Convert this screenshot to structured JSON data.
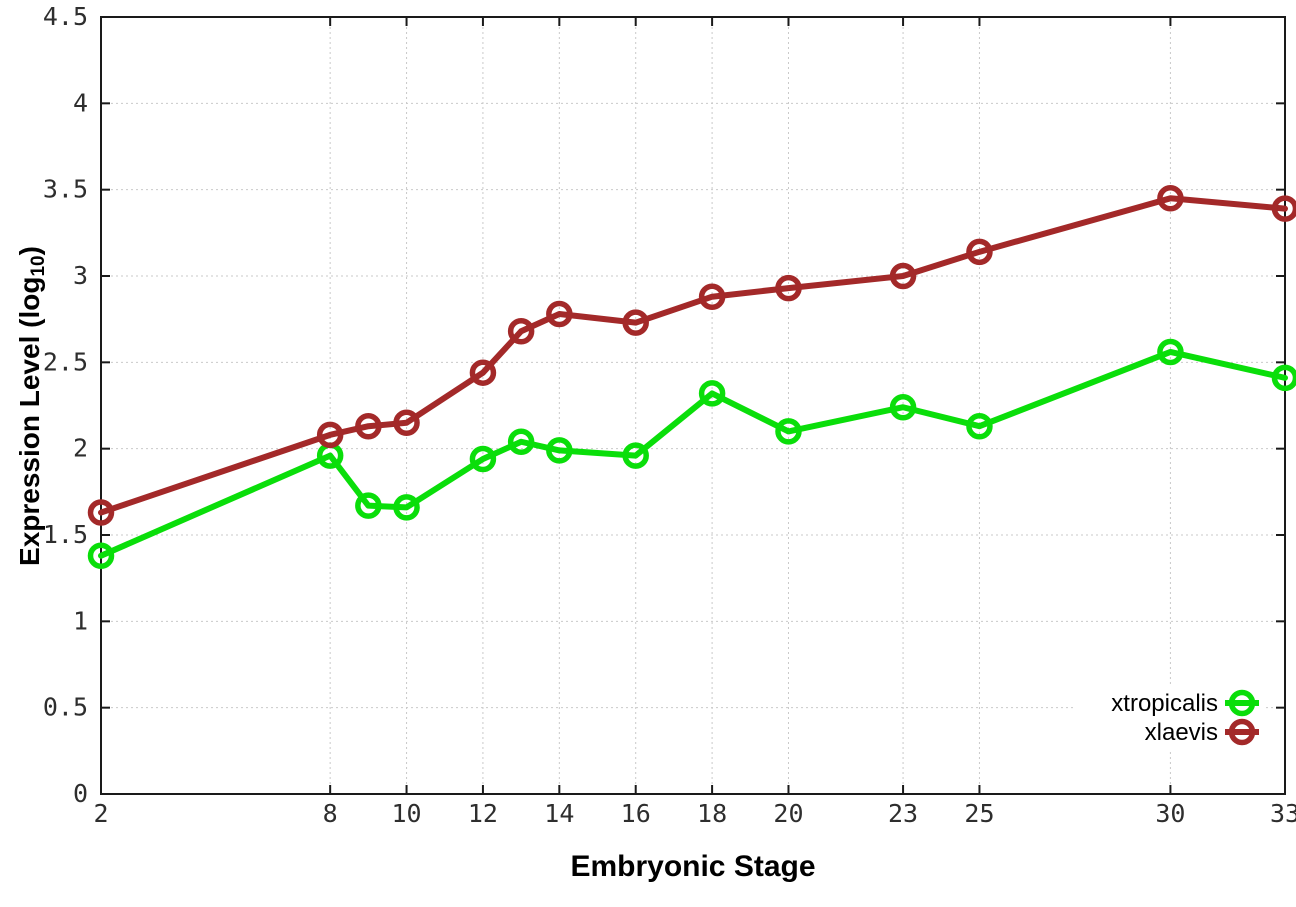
{
  "chart": {
    "xlabel": "Embryonic Stage",
    "ylabel_prefix": "Expression Level (log",
    "ylabel_sub": "10",
    "ylabel_suffix": ")"
  },
  "chart_data": {
    "type": "line",
    "title": "",
    "xlabel": "Embryonic Stage",
    "ylabel": "Expression Level (log10)",
    "x": [
      2,
      8,
      9,
      10,
      12,
      13,
      14,
      16,
      18,
      20,
      23,
      25,
      30,
      33
    ],
    "series": [
      {
        "name": "xtropicalis",
        "color": "#0ade0a",
        "values": [
          1.38,
          1.96,
          1.67,
          1.66,
          1.94,
          2.04,
          1.99,
          1.96,
          2.32,
          2.1,
          2.24,
          2.13,
          2.56,
          2.41
        ]
      },
      {
        "name": "xlaevis",
        "color": "#a32929",
        "values": [
          1.63,
          2.08,
          2.13,
          2.15,
          2.44,
          2.68,
          2.78,
          2.73,
          2.88,
          2.93,
          3.0,
          3.14,
          3.45,
          3.39
        ]
      }
    ],
    "xlim": [
      2,
      33
    ],
    "ylim": [
      0,
      4.5
    ],
    "x_ticks": [
      2,
      8,
      10,
      12,
      14,
      16,
      18,
      20,
      23,
      25,
      30,
      33
    ],
    "y_ticks": [
      0,
      0.5,
      1,
      1.5,
      2,
      2.5,
      3,
      3.5,
      4,
      4.5
    ],
    "grid": true,
    "marker": "open-circle",
    "legend_position": "bottom-right",
    "legend": [
      "xtropicalis",
      "xlaevis"
    ],
    "grid_color": "#c9c9c9",
    "border_color": "#1a1a1a",
    "tick_label_color": "#2e2e2e"
  }
}
